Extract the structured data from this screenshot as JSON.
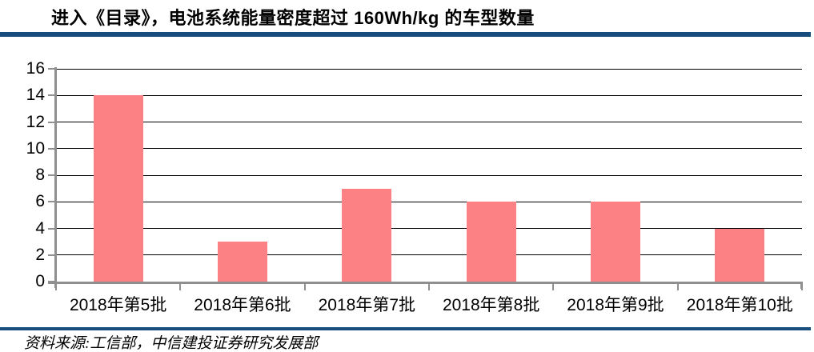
{
  "page": {
    "title": "进入《目录》，电池系统能量密度超过 160Wh/kg 的车型数量",
    "source_note": "资料来源:工信部，中信建投证券研究发展部"
  },
  "colors": {
    "bar_fill": "#FC8185",
    "navy_rule": "#164D7D",
    "axis": "#8F8F8F",
    "gridline": "#000000",
    "text": "#000000"
  },
  "chart_data": {
    "type": "bar",
    "title": "进入《目录》，电池系统能量密度超过 160Wh/kg 的车型数量",
    "categories": [
      "2018年第5批",
      "2018年第6批",
      "2018年第7批",
      "2018年第8批",
      "2018年第9批",
      "2018年第10批"
    ],
    "values": [
      14,
      3,
      7,
      6,
      6,
      4
    ],
    "xlabel": "",
    "ylabel": "",
    "ylim": [
      0,
      16
    ],
    "yticks": [
      0,
      2,
      4,
      6,
      8,
      10,
      12,
      14,
      16
    ],
    "grid": true,
    "legend": false,
    "bar_width_fraction": 0.4,
    "source": "资料来源:工信部，中信建投证券研究发展部"
  }
}
